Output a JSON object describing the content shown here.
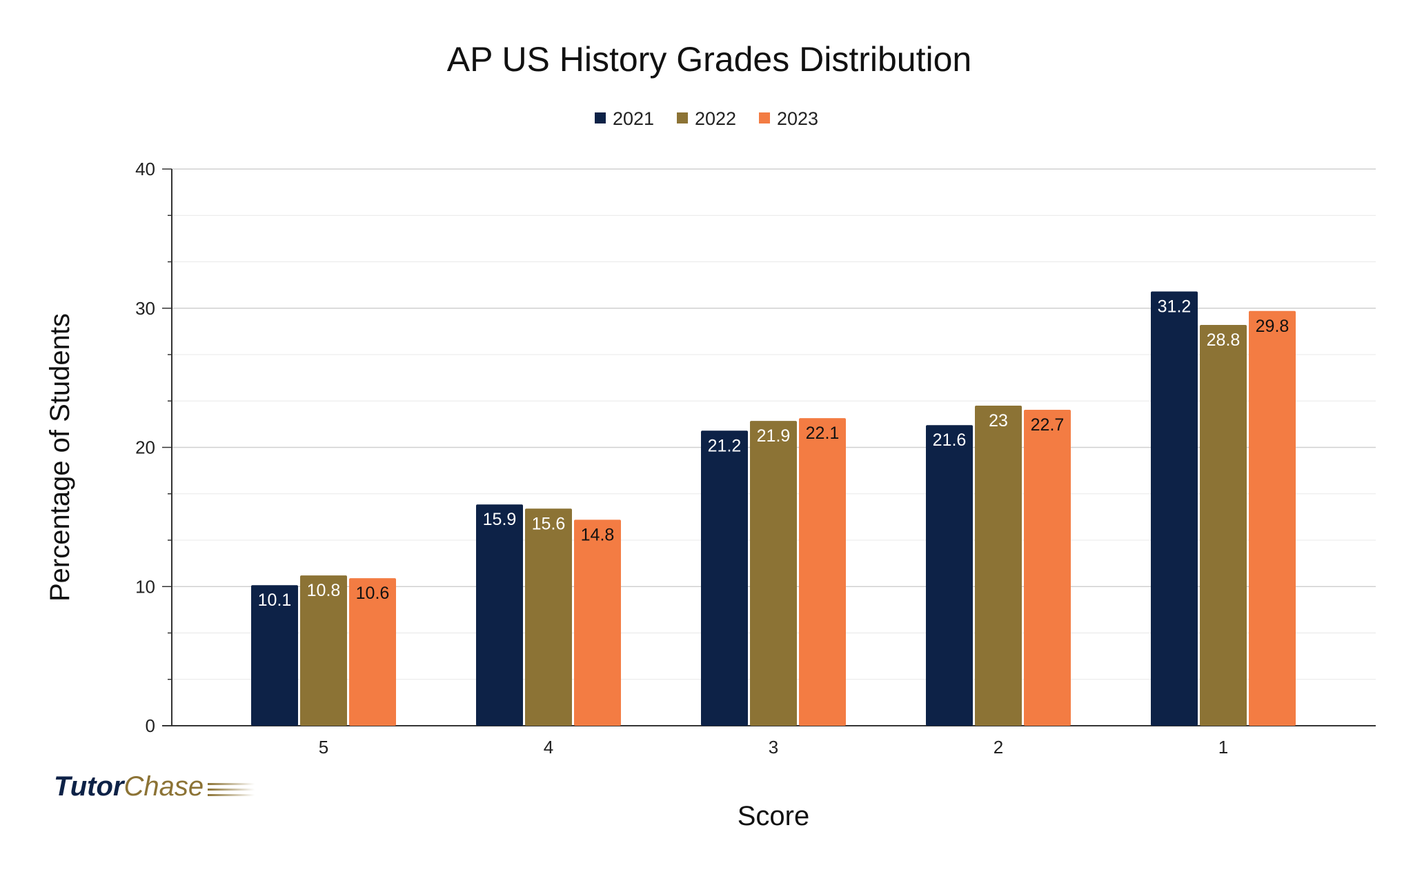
{
  "chart_data": {
    "type": "bar",
    "title": "AP US History Grades Distribution",
    "xlabel": "Score",
    "ylabel": "Percentage of Students",
    "categories": [
      "5",
      "4",
      "3",
      "2",
      "1"
    ],
    "series": [
      {
        "name": "2021",
        "color": "#0d2247",
        "label_color": "#ffffff",
        "values": [
          10.1,
          15.9,
          21.2,
          21.6,
          31.2
        ]
      },
      {
        "name": "2022",
        "color": "#8c7335",
        "label_color": "#ffffff",
        "values": [
          10.8,
          15.6,
          21.9,
          23,
          28.8
        ]
      },
      {
        "name": "2023",
        "color": "#f37c43",
        "label_color": "#111111",
        "values": [
          10.6,
          14.8,
          22.1,
          22.7,
          29.8
        ]
      }
    ],
    "ylim": [
      0,
      40
    ],
    "yticks": [
      0,
      10,
      20,
      30,
      40
    ],
    "grid": true,
    "legend": "top-center"
  },
  "branding": {
    "logo_part1": "Tutor",
    "logo_part2": "Chase"
  }
}
